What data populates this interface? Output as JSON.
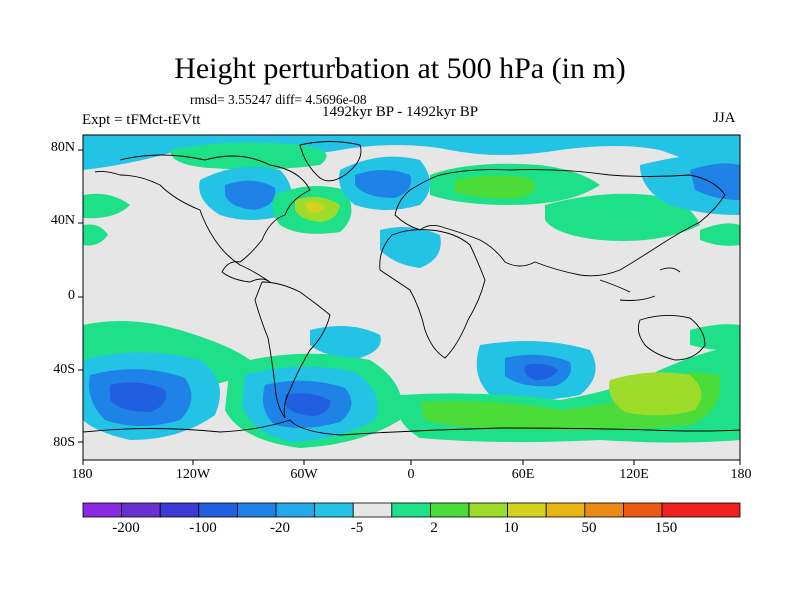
{
  "title": "Height perturbation at 500 hPa (in m)",
  "stats": "rmsd= 3.55247 diff= 4.5696e-08",
  "experiment": "Expt = tFMct-tEVtt",
  "period": "1492kyr BP - 1492kyr BP",
  "season": "JJA",
  "lat_labels": [
    "80N",
    "40N",
    "0",
    "40S",
    "80S"
  ],
  "lon_labels": [
    "180",
    "120W",
    "60W",
    "0",
    "60E",
    "120E",
    "180"
  ],
  "colorbar": {
    "labels": [
      "-200",
      "-100",
      "-20",
      "-5",
      "2",
      "10",
      "50",
      "150"
    ],
    "colors": [
      "#8a2be2",
      "#6a2fd0",
      "#3d3bd6",
      "#1f5fe0",
      "#1e82e6",
      "#22a7e8",
      "#23c3e6",
      "#e6e6e6",
      "#1ee089",
      "#4bdc3a",
      "#9ddc2a",
      "#d4d21f",
      "#e6b514",
      "#e88a14",
      "#ea5a14",
      "#ee1f1f"
    ]
  },
  "colors": {
    "ocean_bg": "#e6e6e6",
    "border": "#000000"
  }
}
